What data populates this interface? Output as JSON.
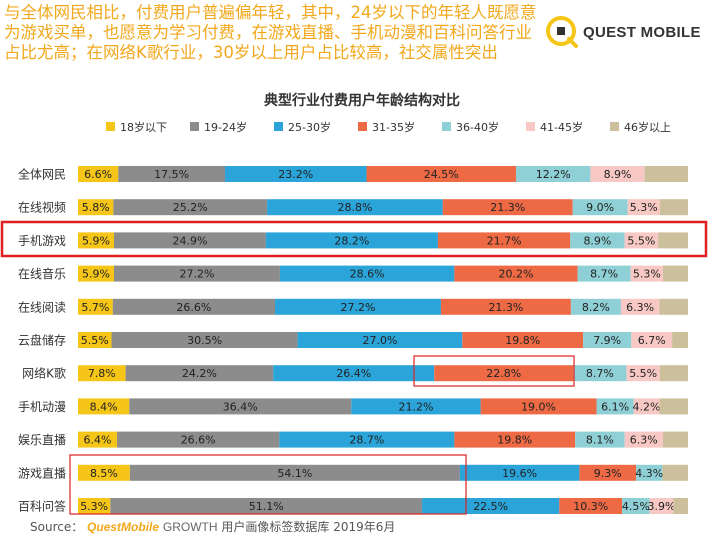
{
  "headline": "与全体网民相比，付费用户普遍偏年轻，其中，24岁以下的年轻人既愿意为游戏买单，也愿意为学习付费，在游戏直播、手机动漫和百科问答行业占比尤高；在网络K歌行业，30岁以上用户占比较高，社交属性突出",
  "logo_text": "QUEST MOBILE",
  "footer": {
    "source_label": "Source：",
    "brand": "QuestMobile",
    "product": "GROWTH",
    "rest": " 用户画像标签数据库 2019年6月"
  },
  "colors": [
    "#f5c518",
    "#8c8c8c",
    "#2aa4d9",
    "#ee6a45",
    "#8fd0d6",
    "#f8c8c4",
    "#cbc09b"
  ],
  "chart_data": {
    "type": "bar",
    "orientation": "horizontal",
    "stacked": true,
    "normalized": true,
    "title": "典型行业付费用户年龄结构对比",
    "legend_position": "top",
    "grid": false,
    "categories": [
      "全体网民",
      "在线视频",
      "手机游戏",
      "在线音乐",
      "在线阅读",
      "云盘储存",
      "网络K歌",
      "手机动漫",
      "娱乐直播",
      "游戏直播",
      "百科问答"
    ],
    "highlight_categories": [
      "手机游戏"
    ],
    "series": [
      {
        "name": "18岁以下",
        "values": [
          6.6,
          5.8,
          5.9,
          5.9,
          5.7,
          5.5,
          7.8,
          8.4,
          6.4,
          8.5,
          5.3
        ]
      },
      {
        "name": "19-24岁",
        "values": [
          17.5,
          25.2,
          24.9,
          27.2,
          26.6,
          30.5,
          24.2,
          36.4,
          26.6,
          54.1,
          51.1
        ]
      },
      {
        "name": "25-30岁",
        "values": [
          23.2,
          28.8,
          28.2,
          28.6,
          27.2,
          27.0,
          26.4,
          21.2,
          28.7,
          19.6,
          22.5
        ]
      },
      {
        "name": "31-35岁",
        "values": [
          24.5,
          21.3,
          21.7,
          20.2,
          21.3,
          19.8,
          22.8,
          19.0,
          19.8,
          9.3,
          10.3
        ]
      },
      {
        "name": "36-40岁",
        "values": [
          12.2,
          9.0,
          8.9,
          8.7,
          8.2,
          7.9,
          8.7,
          6.1,
          8.1,
          4.3,
          4.5
        ]
      },
      {
        "name": "41-45岁",
        "values": [
          8.9,
          5.3,
          5.5,
          5.3,
          6.3,
          6.7,
          5.5,
          4.2,
          6.3,
          null,
          3.9
        ]
      },
      {
        "name": "46岁以上",
        "values": [
          7.1,
          4.6,
          4.9,
          4.1,
          4.7,
          2.6,
          4.6,
          4.7,
          4.1,
          4.2,
          2.4
        ]
      }
    ]
  }
}
